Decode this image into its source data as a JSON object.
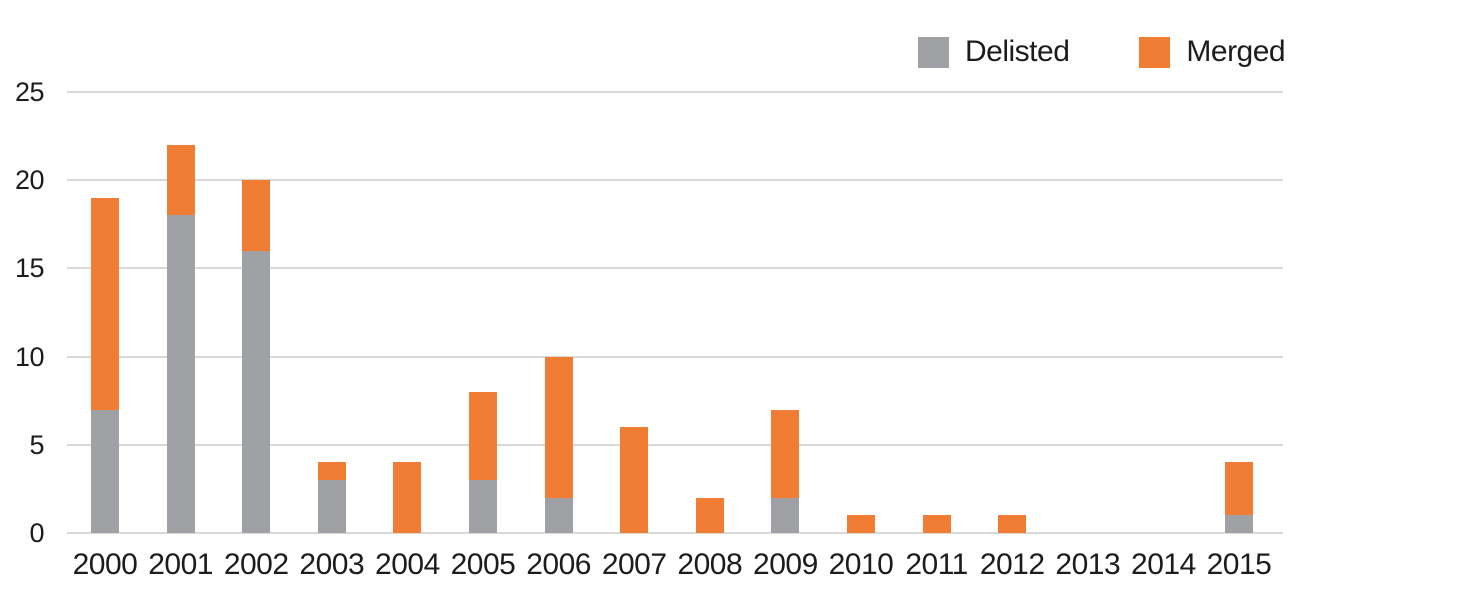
{
  "chart_data": {
    "type": "bar",
    "stacked": true,
    "title": "",
    "xlabel": "",
    "ylabel": "",
    "categories": [
      "2000",
      "2001",
      "2002",
      "2003",
      "2004",
      "2005",
      "2006",
      "2007",
      "2008",
      "2009",
      "2010",
      "2011",
      "2012",
      "2013",
      "2014",
      "2015"
    ],
    "series": [
      {
        "name": "Delisted",
        "color": "#A0A1A4",
        "values": [
          7,
          18,
          16,
          3,
          0,
          3,
          2,
          0,
          0,
          2,
          0,
          0,
          0,
          0,
          0,
          1
        ]
      },
      {
        "name": "Merged",
        "color": "#F07D33",
        "values": [
          12,
          4,
          4,
          1,
          4,
          5,
          8,
          6,
          2,
          5,
          1,
          1,
          1,
          0,
          0,
          3
        ]
      }
    ],
    "totals": [
      19,
      22,
      20,
      4,
      4,
      8,
      10,
      6,
      2,
      7,
      1,
      1,
      1,
      0,
      0,
      4
    ],
    "yticks": [
      0,
      5,
      10,
      15,
      20,
      25
    ],
    "ylim": [
      0,
      25
    ],
    "grid": true,
    "legend_position": "top-right",
    "background_color": "#FFFFFF",
    "gridline_color": "#D9D9D9",
    "text_color": "#1C1C1C"
  }
}
